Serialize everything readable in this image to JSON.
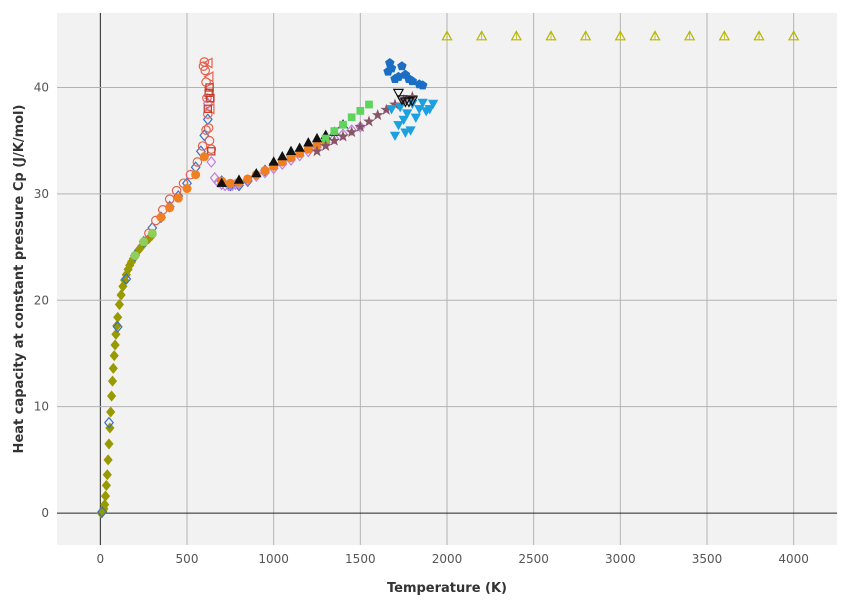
{
  "chart_data": {
    "type": "scatter",
    "title": "",
    "xlabel": "Temperature (K)",
    "ylabel": "Heat capacity at constant pressure Cp (J/K/mol)",
    "xlim": [
      -250,
      4250
    ],
    "ylim": [
      -3,
      47
    ],
    "x_ticks": [
      0,
      500,
      1000,
      1500,
      2000,
      2500,
      3000,
      3500,
      4000
    ],
    "y_ticks": [
      0,
      10,
      20,
      30,
      40
    ],
    "grid": true,
    "legend": "none",
    "background": "#f2f2f2",
    "series": [
      {
        "marker": "diamond",
        "color": "#999900",
        "x": [
          5,
          10,
          15,
          20,
          25,
          30,
          35,
          40,
          45,
          50,
          55,
          60,
          65,
          70,
          75,
          80,
          85,
          90,
          95,
          100,
          110,
          120,
          130,
          140,
          150,
          160,
          170,
          180,
          190,
          200,
          220,
          240,
          260,
          280,
          298
        ],
        "y": [
          0.0,
          0.1,
          0.2,
          0.4,
          0.8,
          1.6,
          2.6,
          3.6,
          5.0,
          6.5,
          8.0,
          9.5,
          11.0,
          12.4,
          13.6,
          14.8,
          15.8,
          16.8,
          17.6,
          18.4,
          19.6,
          20.5,
          21.3,
          21.9,
          22.4,
          22.9,
          23.3,
          23.6,
          23.9,
          24.2,
          24.7,
          25.1,
          25.5,
          25.8,
          26.1
        ]
      },
      {
        "marker": "diamond-open",
        "color": "#3a6fc4",
        "x": [
          10,
          50,
          100,
          150,
          200,
          250,
          300,
          350,
          400,
          450,
          500,
          550,
          580,
          600,
          620,
          700,
          750,
          800,
          850,
          900,
          950,
          1000,
          1050,
          1100
        ],
        "y": [
          0.1,
          8.5,
          17.5,
          22.0,
          24.2,
          25.5,
          26.8,
          27.8,
          28.8,
          29.8,
          31.0,
          32.5,
          34.0,
          35.5,
          37.0,
          31.2,
          30.8,
          30.8,
          31.2,
          31.7,
          32.2,
          32.8,
          33.2,
          33.6
        ]
      },
      {
        "marker": "circle-open",
        "color": "#e8604c",
        "x": [
          595,
          600,
          605,
          610,
          615,
          620,
          625,
          630,
          640
        ],
        "y": [
          42.0,
          42.4,
          41.6,
          40.5,
          39.0,
          37.5,
          36.2,
          35.0,
          34.2
        ]
      },
      {
        "marker": "circle-open",
        "color": "#e8604c",
        "x": [
          280,
          320,
          360,
          400,
          440,
          480,
          520,
          560,
          590,
          610
        ],
        "y": [
          26.3,
          27.5,
          28.5,
          29.5,
          30.3,
          31.0,
          31.8,
          33.0,
          34.5,
          36.0
        ]
      },
      {
        "marker": "diamond-open",
        "color": "#c080e0",
        "x": [
          620,
          640,
          660,
          680,
          700,
          720,
          740,
          760,
          780,
          800,
          850,
          900,
          950,
          1000,
          1050,
          1100,
          1150,
          1200,
          1250,
          1300,
          1350,
          1400,
          1450,
          1500
        ],
        "y": [
          38.5,
          33.0,
          31.5,
          31.1,
          30.9,
          30.8,
          30.8,
          30.8,
          30.9,
          31.0,
          31.3,
          31.7,
          32.0,
          32.4,
          32.8,
          33.2,
          33.6,
          34.0,
          34.4,
          34.8,
          35.2,
          35.6,
          36.0,
          36.3
        ]
      },
      {
        "marker": "triangle-left-open",
        "color": "#e8604c",
        "x": [
          625,
          630,
          632,
          634,
          636
        ],
        "y": [
          42.3,
          41.0,
          40.0,
          39.0,
          38.0
        ]
      },
      {
        "marker": "square-open",
        "color": "#c0392b",
        "x": [
          620,
          625,
          630,
          635,
          640
        ],
        "y": [
          38.0,
          39.5,
          40.0,
          39.0,
          34.0
        ]
      },
      {
        "marker": "circle",
        "color": "#f07f20",
        "x": [
          350,
          400,
          450,
          500,
          550,
          600,
          700,
          750,
          800,
          850,
          900,
          950,
          1000,
          1050,
          1100,
          1150,
          1200,
          1250,
          1300
        ],
        "y": [
          27.8,
          28.7,
          29.6,
          30.5,
          31.8,
          33.5,
          31.2,
          31.0,
          31.1,
          31.4,
          31.8,
          32.2,
          32.6,
          33.0,
          33.4,
          33.8,
          34.2,
          34.6,
          35.0
        ]
      },
      {
        "marker": "circle",
        "color": "#8fce5c",
        "x": [
          200,
          250,
          300
        ],
        "y": [
          24.2,
          25.5,
          26.3
        ]
      },
      {
        "marker": "triangle-up",
        "color": "#111111",
        "x": [
          700,
          800,
          900,
          1000,
          1050,
          1100,
          1150,
          1200,
          1250,
          1300,
          1350,
          1400
        ],
        "y": [
          31.0,
          31.3,
          31.9,
          33.0,
          33.5,
          34.0,
          34.3,
          34.8,
          35.2,
          35.5,
          35.8,
          36.5
        ]
      },
      {
        "marker": "square",
        "color": "#5ed45e",
        "x": [
          1300,
          1350,
          1400,
          1450,
          1500,
          1550
        ],
        "y": [
          35.2,
          35.9,
          36.5,
          37.2,
          37.8,
          38.4
        ]
      },
      {
        "marker": "star",
        "color": "#885566",
        "x": [
          1250,
          1300,
          1350,
          1400,
          1450,
          1500,
          1550,
          1600,
          1650,
          1700,
          1750,
          1800
        ],
        "y": [
          34.0,
          34.5,
          35.0,
          35.4,
          35.8,
          36.3,
          36.8,
          37.4,
          37.9,
          38.4,
          38.8,
          39.1
        ]
      },
      {
        "marker": "triangle-down",
        "color": "#1ba0e0",
        "x": [
          1680,
          1700,
          1720,
          1730,
          1750,
          1760,
          1770,
          1790,
          1800,
          1820,
          1840,
          1860,
          1880,
          1900,
          1920
        ],
        "y": [
          38.0,
          35.5,
          36.5,
          38.2,
          37.0,
          35.8,
          37.6,
          36.0,
          38.5,
          37.2,
          38.0,
          38.6,
          37.8,
          38.0,
          38.5
        ]
      },
      {
        "marker": "pentagon",
        "color": "#1a6fc4",
        "x": [
          1660,
          1670,
          1680,
          1700,
          1720,
          1740,
          1760,
          1780,
          1800,
          1840,
          1860
        ],
        "y": [
          41.5,
          42.3,
          41.8,
          40.8,
          41.0,
          42.0,
          41.2,
          40.8,
          40.6,
          40.3,
          40.2
        ]
      },
      {
        "marker": "triangle-down-open",
        "color": "#111111",
        "x": [
          1720,
          1740,
          1760,
          1780,
          1800
        ],
        "y": [
          39.5,
          38.9,
          38.7,
          38.7,
          38.8
        ]
      },
      {
        "marker": "triangle-up-open",
        "color": "#b8b800",
        "x": [
          2000,
          2200,
          2400,
          2600,
          2800,
          3000,
          3200,
          3400,
          3600,
          3800,
          4000
        ],
        "y": [
          44.8,
          44.8,
          44.8,
          44.8,
          44.8,
          44.8,
          44.8,
          44.8,
          44.8,
          44.8,
          44.8
        ]
      }
    ]
  }
}
